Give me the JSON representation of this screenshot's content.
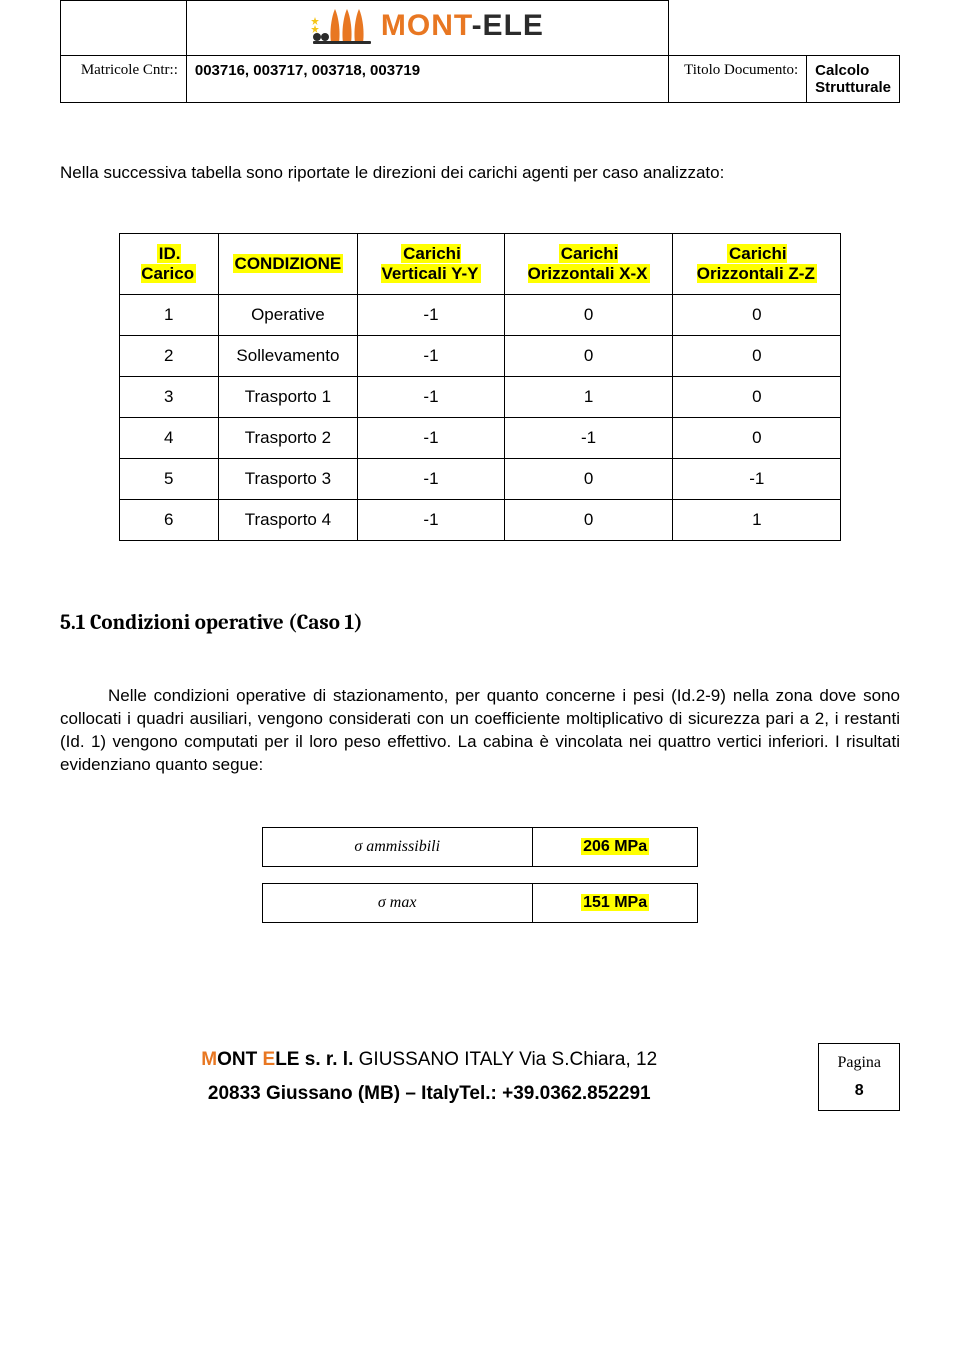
{
  "header": {
    "matricole_label": "Matricole Cntr::",
    "matricole_value": "003716, 003717, 003718, 003719",
    "titolo_label": "Titolo Documento:",
    "titolo_value": "Calcolo Strutturale",
    "logo_text1": "MONT",
    "logo_text2": "-ELE"
  },
  "intro": "Nella successiva tabella sono riportate le direzioni dei carichi agenti per caso analizzato:",
  "load_table": {
    "headers": {
      "id": "ID. Carico",
      "cond": "CONDIZIONE",
      "vy": "Carichi Verticali Y-Y",
      "ox": "Carichi Orizzontali X-X",
      "oz": "Carichi Orizzontali Z-Z"
    },
    "rows": [
      {
        "id": "1",
        "cond": "Operative",
        "vy": "-1",
        "ox": "0",
        "oz": "0"
      },
      {
        "id": "2",
        "cond": "Sollevamento",
        "vy": "-1",
        "ox": "0",
        "oz": "0"
      },
      {
        "id": "3",
        "cond": "Trasporto 1",
        "vy": "-1",
        "ox": "1",
        "oz": "0"
      },
      {
        "id": "4",
        "cond": "Trasporto 2",
        "vy": "-1",
        "ox": "-1",
        "oz": "0"
      },
      {
        "id": "5",
        "cond": "Trasporto 3",
        "vy": "-1",
        "ox": "0",
        "oz": "-1"
      },
      {
        "id": "6",
        "cond": "Trasporto 4",
        "vy": "-1",
        "ox": "0",
        "oz": "1"
      }
    ]
  },
  "section_title": "5.1 Condizioni operative (Caso 1)",
  "body_text": "Nelle condizioni operative di stazionamento, per quanto concerne i pesi  (Id.2-9) nella zona dove  sono collocati i quadri ausiliari, vengono considerati con un coefficiente moltiplicativo di sicurezza pari a 2, i restanti (Id. 1) vengono computati per il loro peso effettivo. La cabina è vincolata nei quattro vertici inferiori. I risultati evidenziano quanto segue:",
  "results": {
    "row1_label": "σ ammissibili",
    "row1_value": "206 MPa",
    "row2_label": "σ max",
    "row2_value": "151 MPa"
  },
  "footer": {
    "company_m": "M",
    "company_ont": "ONT ",
    "company_e": "E",
    "company_le": "LE ",
    "company_srl": "s. r. l.",
    "address1_rest": "  GIUSSANO ITALY  Via S.Chiara, 12",
    "address2": "20833 Giussano (MB) – ItalyTel.: +39.0362.852291",
    "page_label": "Pagina",
    "page_num": "8"
  },
  "colors": {
    "highlight": "#ffff00",
    "orange": "#e87722",
    "black": "#000000",
    "text": "#000000"
  }
}
